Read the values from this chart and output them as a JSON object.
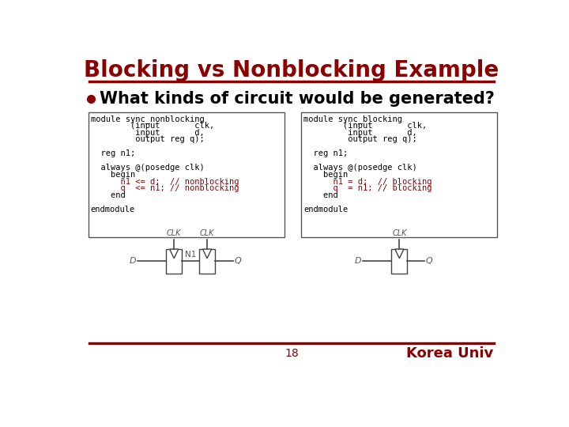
{
  "title": "Blocking vs Nonblocking Example",
  "title_color": "#8B0000",
  "title_fontsize": 20,
  "bullet_text": "What kinds of circuit would be generated?",
  "bullet_fontsize": 15,
  "red_color": "#8B0000",
  "code_fontsize": 7.5,
  "left_code_lines": [
    [
      "black",
      "module sync_nonblocking"
    ],
    [
      "black",
      "        (input       clk,"
    ],
    [
      "black",
      "         input       d,"
    ],
    [
      "black",
      "         output reg q);"
    ],
    [
      "black",
      ""
    ],
    [
      "black",
      "  reg n1;"
    ],
    [
      "black",
      ""
    ],
    [
      "black",
      "  always @(posedge clk)"
    ],
    [
      "black",
      "    begin"
    ],
    [
      "red",
      "      n1 <= d;  // nonblocking"
    ],
    [
      "red",
      "      q  <= n1; // nonblocking"
    ],
    [
      "black",
      "    end"
    ],
    [
      "black",
      ""
    ],
    [
      "black",
      "endmodule"
    ]
  ],
  "right_code_lines": [
    [
      "black",
      "module sync_blocking"
    ],
    [
      "black",
      "        (input       clk,"
    ],
    [
      "black",
      "         input       d,"
    ],
    [
      "black",
      "         output reg q);"
    ],
    [
      "black",
      ""
    ],
    [
      "black",
      "  reg n1;"
    ],
    [
      "black",
      ""
    ],
    [
      "black",
      "  always @(posedge clk)"
    ],
    [
      "black",
      "    begin"
    ],
    [
      "red",
      "      n1 = d;  // blocking"
    ],
    [
      "red",
      "      q  = n1; // blocking"
    ],
    [
      "black",
      "    end"
    ],
    [
      "black",
      ""
    ],
    [
      "black",
      "endmodule"
    ]
  ],
  "page_number": "18",
  "korea_univ": "Korea Univ",
  "background": "#ffffff",
  "box_edge_color": "#555555",
  "diagram_color": "#444444",
  "clk_label_color": "#555555",
  "dq_label_color": "#555555"
}
